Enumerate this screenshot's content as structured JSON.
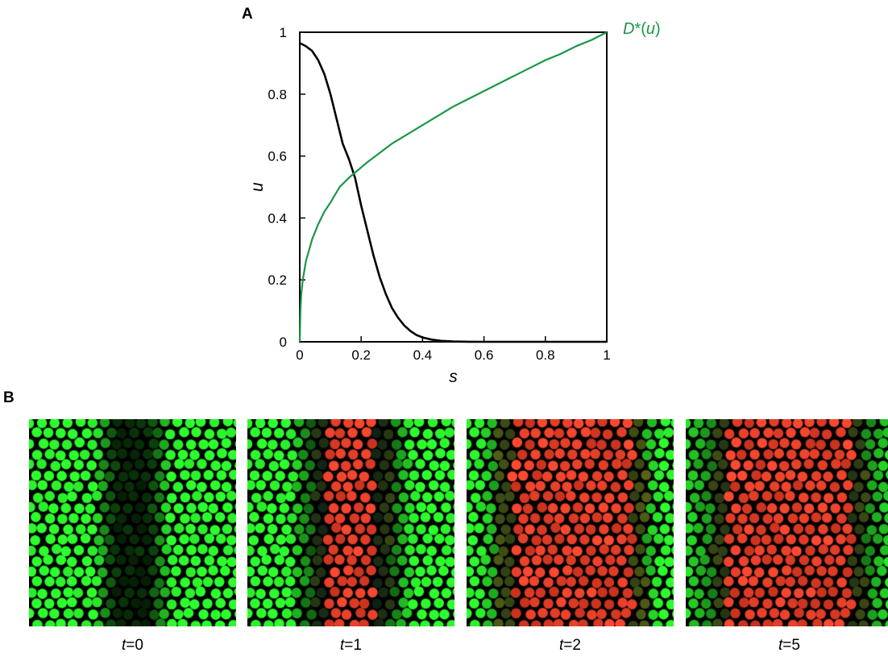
{
  "panel_a_label": "A",
  "panel_b_label": "B",
  "chart_data": {
    "type": "line",
    "xlabel": "s",
    "ylabel": "u",
    "xlim": [
      0,
      1
    ],
    "ylim": [
      0,
      1
    ],
    "x_ticks": [
      "0",
      "0.2",
      "0.4",
      "0.6",
      "0.8",
      "1"
    ],
    "y_ticks": [
      "0",
      "0.2",
      "0.4",
      "0.6",
      "0.8",
      "1"
    ],
    "grid": false,
    "series": [
      {
        "name": "",
        "color": "#000000",
        "x": [
          0,
          0.02,
          0.04,
          0.06,
          0.08,
          0.1,
          0.12,
          0.14,
          0.16,
          0.18,
          0.2,
          0.22,
          0.24,
          0.26,
          0.28,
          0.3,
          0.32,
          0.34,
          0.36,
          0.38,
          0.4,
          0.43,
          0.46,
          0.5,
          0.55,
          0.6,
          0.7,
          0.8,
          0.9,
          1.0
        ],
        "y": [
          0.965,
          0.955,
          0.94,
          0.91,
          0.865,
          0.8,
          0.72,
          0.64,
          0.59,
          0.53,
          0.44,
          0.36,
          0.28,
          0.21,
          0.155,
          0.11,
          0.078,
          0.053,
          0.035,
          0.022,
          0.014,
          0.007,
          0.003,
          0.001,
          0.0003,
          0.0,
          0.0,
          0.0,
          0.0,
          0.0
        ]
      },
      {
        "name": "D*(u)",
        "color": "#1a9645",
        "x": [
          0,
          0.002,
          0.005,
          0.01,
          0.02,
          0.04,
          0.06,
          0.08,
          0.1,
          0.13,
          0.16,
          0.19,
          0.22,
          0.26,
          0.3,
          0.35,
          0.4,
          0.45,
          0.5,
          0.55,
          0.6,
          0.65,
          0.7,
          0.75,
          0.8,
          0.85,
          0.9,
          0.95,
          1.0
        ],
        "y": [
          0,
          0.1,
          0.155,
          0.2,
          0.26,
          0.33,
          0.38,
          0.42,
          0.45,
          0.5,
          0.53,
          0.555,
          0.58,
          0.61,
          0.64,
          0.67,
          0.7,
          0.73,
          0.76,
          0.785,
          0.81,
          0.835,
          0.86,
          0.885,
          0.91,
          0.93,
          0.955,
          0.975,
          1.0
        ]
      }
    ],
    "curve_label": {
      "prefix": "D",
      "star": "*",
      "open": "(",
      "var": "u",
      "close": ")"
    }
  },
  "snapshots": [
    {
      "t_var": "t",
      "t_eq": "=0",
      "red_band": [
        0,
        0
      ],
      "dark_center": 0.5,
      "dark_width": 0.18
    },
    {
      "t_var": "t",
      "t_eq": "=1",
      "red_band": [
        0.38,
        0.62
      ],
      "dark_center": 0.5,
      "dark_width": 0.3
    },
    {
      "t_var": "t",
      "t_eq": "=2",
      "red_band": [
        0.22,
        0.8
      ],
      "dark_center": 0.5,
      "dark_width": 0.45
    },
    {
      "t_var": "t",
      "t_eq": "=5",
      "red_band": [
        0.2,
        0.8
      ],
      "dark_center": 0.5,
      "dark_width": 0.52
    }
  ],
  "colors": {
    "bright_green": "#2dff2d",
    "red": "#ff3b2b",
    "background": "#000000"
  }
}
